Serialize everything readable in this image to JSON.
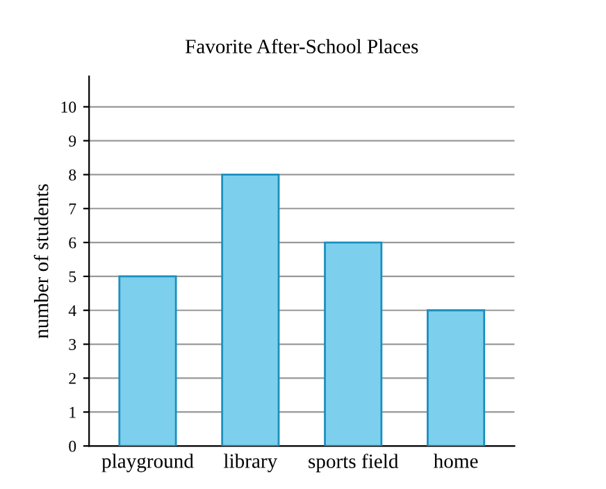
{
  "chart_data": {
    "type": "bar",
    "title": "Favorite After-School Places",
    "ylabel": "number of students",
    "categories": [
      "playground",
      "library",
      "sports field",
      "home"
    ],
    "values": [
      5,
      8,
      6,
      4
    ],
    "color": "#7dd0ed",
    "ylim": [
      0,
      10.9
    ],
    "yticks": [
      0,
      1,
      2,
      3,
      4,
      5,
      6,
      7,
      8,
      9,
      10
    ],
    "grid": "y",
    "legend": false
  }
}
